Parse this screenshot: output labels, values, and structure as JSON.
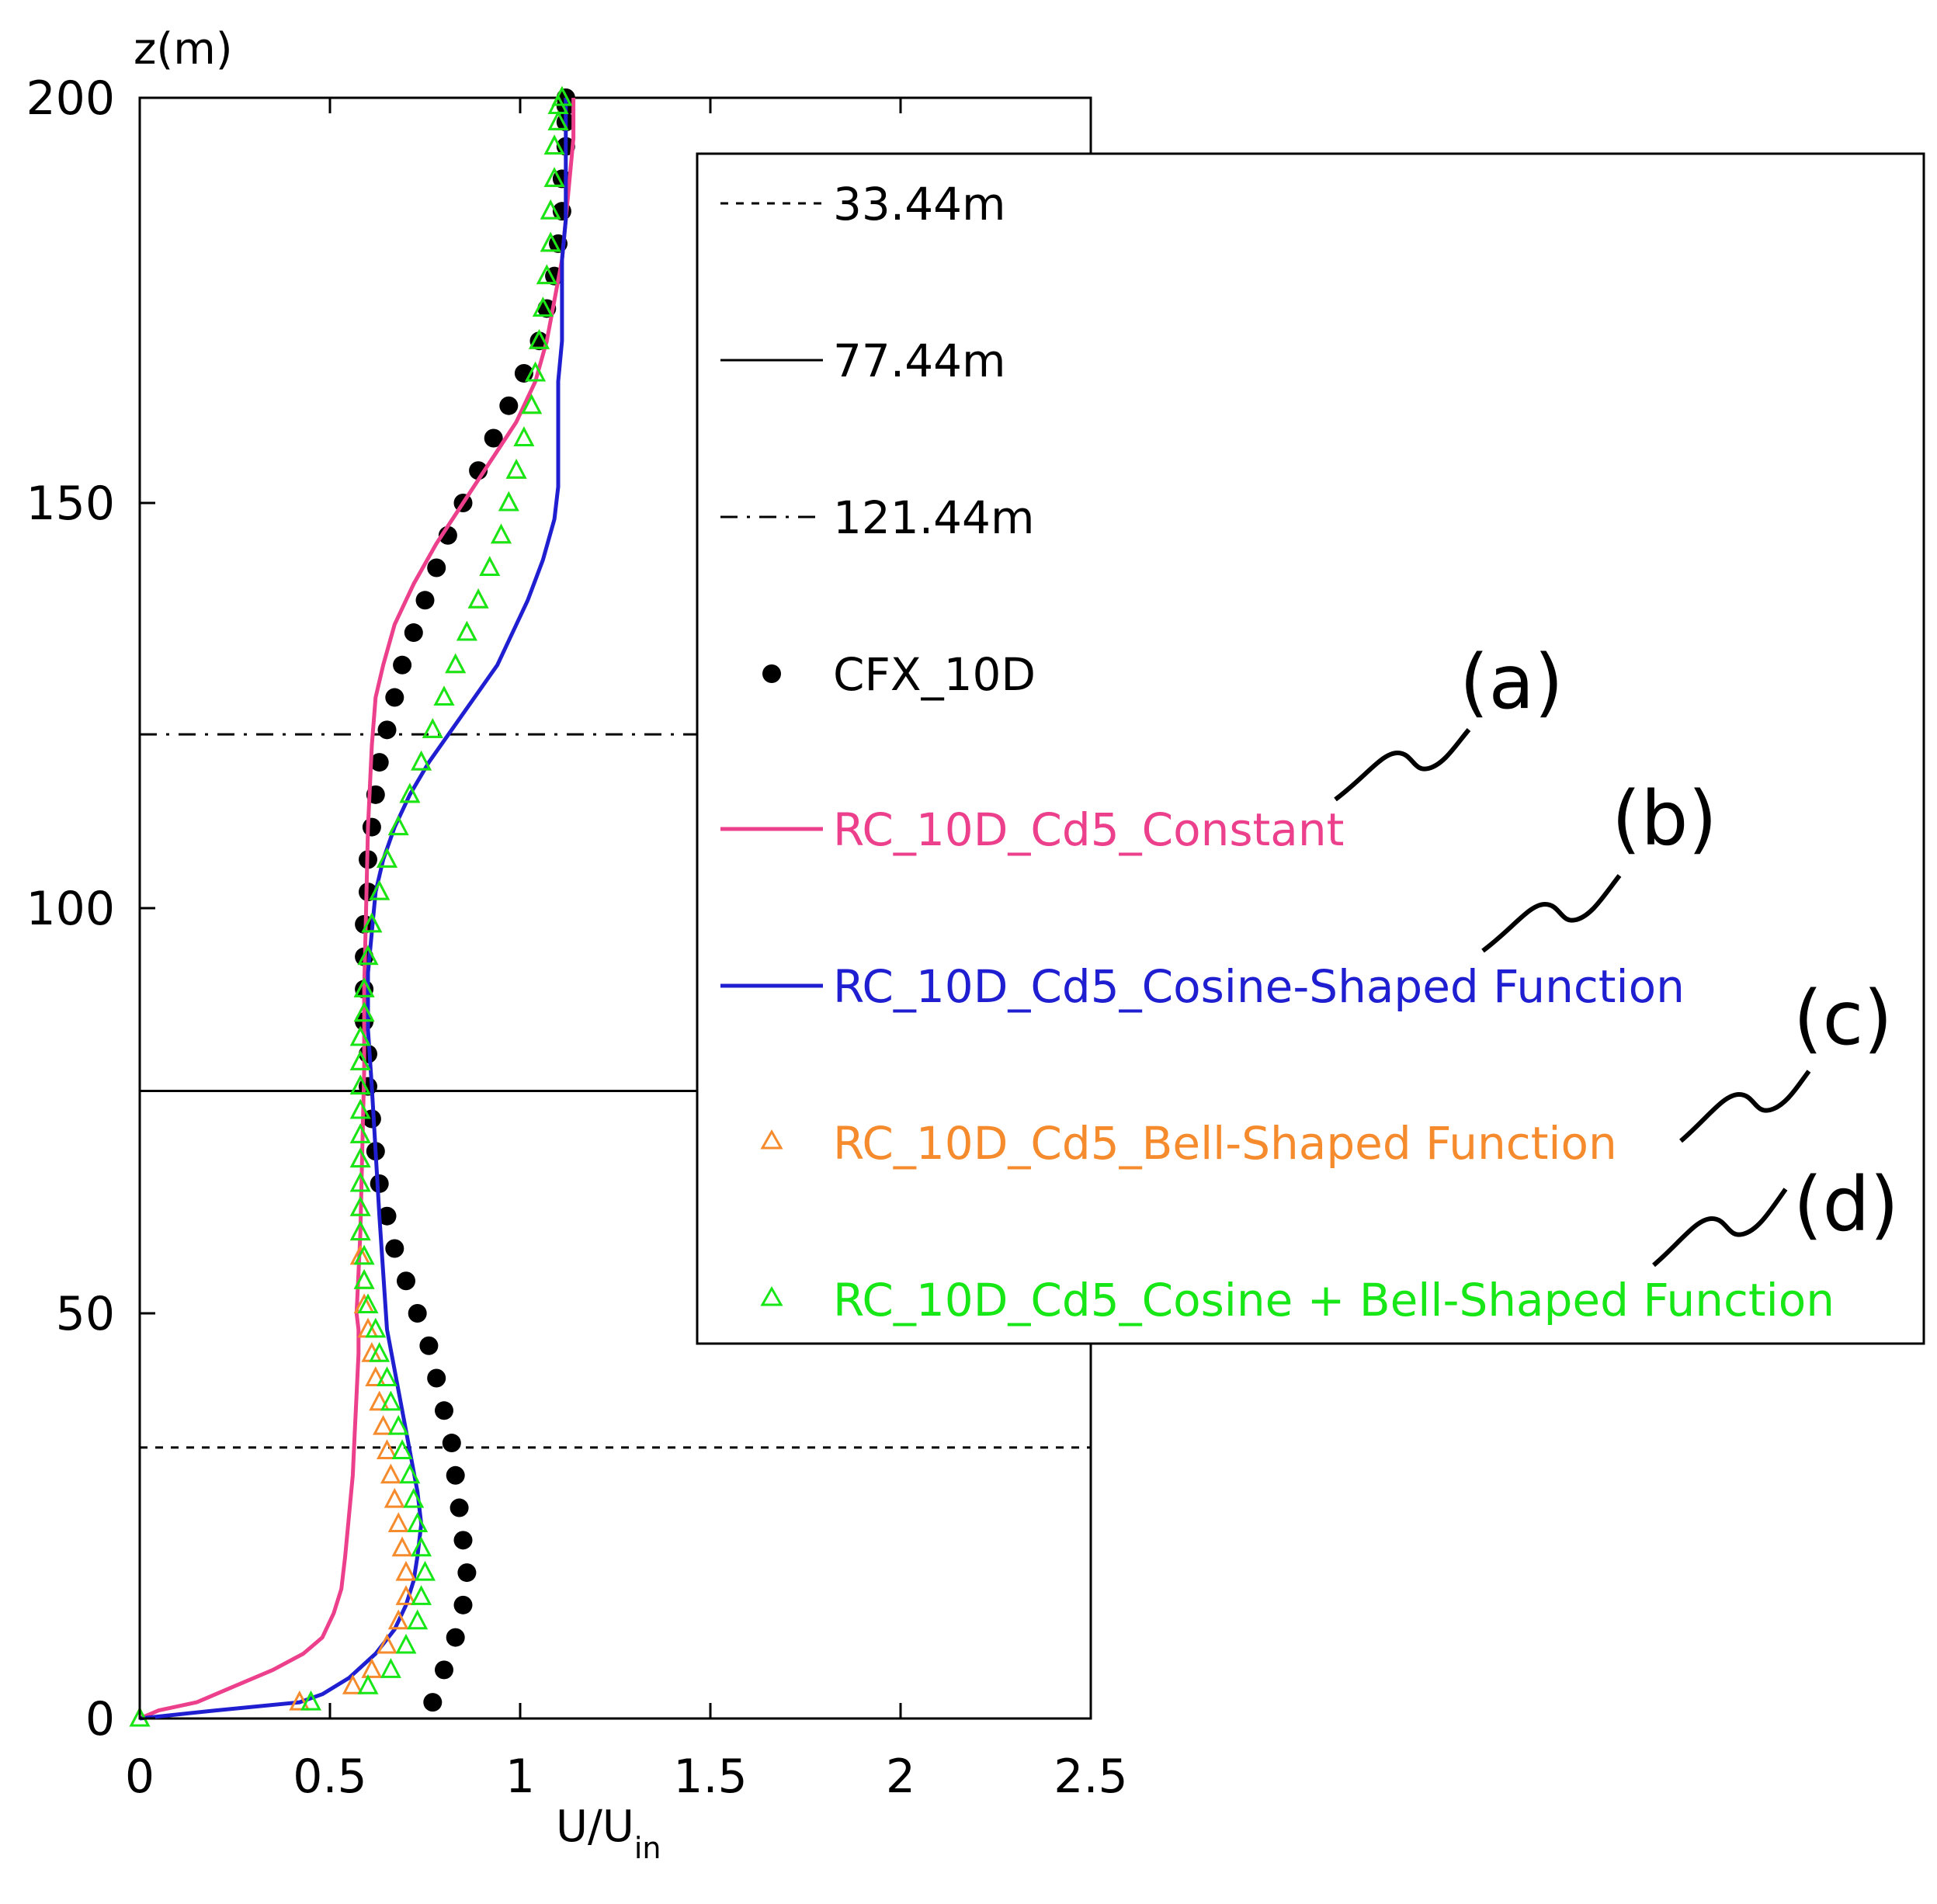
{
  "chart_data": {
    "type": "line",
    "title": "",
    "xlabel": "U/U",
    "xlabel_sub": "in",
    "ylabel": "z(m)",
    "xlim": [
      0,
      2.5
    ],
    "ylim": [
      0,
      200
    ],
    "xticks": [
      0,
      0.5,
      1,
      1.5,
      2,
      2.5
    ],
    "xtick_labels": [
      "0",
      "0.5",
      "1",
      "1.5",
      "2",
      "2.5"
    ],
    "yticks": [
      0,
      50,
      100,
      150,
      200
    ],
    "ytick_labels": [
      "0",
      "50",
      "100",
      "150",
      "200"
    ],
    "grid": false,
    "legend_position": "right",
    "hlines": [
      {
        "name": "33.44m",
        "y": 33.44,
        "style": "dashed"
      },
      {
        "name": "77.44m",
        "y": 77.44,
        "style": "solid"
      },
      {
        "name": "121.44m",
        "y": 121.44,
        "style": "dashdot"
      }
    ],
    "series": [
      {
        "name": "CFX_10D",
        "kind": "dots",
        "color": "#000000",
        "x": [
          0.77,
          0.8,
          0.83,
          0.85,
          0.86,
          0.85,
          0.84,
          0.83,
          0.82,
          0.8,
          0.78,
          0.76,
          0.73,
          0.7,
          0.67,
          0.65,
          0.63,
          0.62,
          0.61,
          0.6,
          0.6,
          0.59,
          0.59,
          0.59,
          0.59,
          0.6,
          0.6,
          0.61,
          0.62,
          0.63,
          0.65,
          0.67,
          0.69,
          0.72,
          0.75,
          0.78,
          0.81,
          0.85,
          0.89,
          0.93,
          0.97,
          1.01,
          1.05,
          1.07,
          1.09,
          1.1,
          1.11,
          1.11,
          1.12,
          1.12,
          1.12,
          1.12,
          1.12
        ],
        "y": [
          2,
          6,
          10,
          14,
          18,
          22,
          26,
          30,
          34,
          38,
          42,
          46,
          50,
          54,
          58,
          62,
          66,
          70,
          74,
          78,
          82,
          86,
          90,
          94,
          98,
          102,
          106,
          110,
          114,
          118,
          122,
          126,
          130,
          134,
          138,
          142,
          146,
          150,
          154,
          158,
          162,
          166,
          170,
          174,
          178,
          182,
          186,
          190,
          194,
          197,
          199,
          200,
          200
        ]
      },
      {
        "name": "RC_10D_Cd5_Constant",
        "kind": "line",
        "color": "#ec3f8c",
        "x": [
          0.0,
          0.05,
          0.15,
          0.25,
          0.35,
          0.43,
          0.48,
          0.51,
          0.53,
          0.54,
          0.55,
          0.56,
          0.565,
          0.57,
          0.575,
          0.575,
          0.57,
          0.575,
          0.58,
          0.585,
          0.59,
          0.59,
          0.595,
          0.6,
          0.61,
          0.62,
          0.64,
          0.67,
          0.72,
          0.78,
          0.85,
          0.92,
          0.99,
          1.04,
          1.07,
          1.09,
          1.11,
          1.12,
          1.13,
          1.14,
          1.14
        ],
        "x_end": [],
        "y": [
          0,
          1,
          2,
          4,
          6,
          8,
          10,
          13,
          16,
          20,
          25,
          30,
          35,
          40,
          45,
          48,
          50,
          55,
          60,
          70,
          80,
          90,
          100,
          110,
          120,
          126,
          130,
          135,
          140,
          145,
          150,
          155,
          160,
          165,
          170,
          175,
          180,
          185,
          190,
          195,
          200
        ]
      },
      {
        "name": "RC_10D_Cd5_Cosine-Shaped Function",
        "kind": "line",
        "color": "#1f1fd1",
        "x": [
          0.0,
          0.2,
          0.42,
          0.48,
          0.55,
          0.62,
          0.67,
          0.7,
          0.72,
          0.73,
          0.74,
          0.73,
          0.71,
          0.69,
          0.67,
          0.65,
          0.64,
          0.63,
          0.62,
          0.61,
          0.6,
          0.6,
          0.61,
          0.62,
          0.64,
          0.67,
          0.71,
          0.76,
          0.82,
          0.88,
          0.94,
          0.98,
          1.02,
          1.06,
          1.09,
          1.1,
          1.1,
          1.1,
          1.1,
          1.11,
          1.11,
          1.11,
          1.12,
          1.12,
          1.12
        ],
        "y": [
          0,
          1,
          2,
          3,
          5,
          8,
          11,
          14,
          17,
          20,
          24,
          28,
          33,
          38,
          43,
          48,
          55,
          62,
          70,
          78,
          85,
          92,
          97,
          102,
          106,
          110,
          114,
          118,
          122,
          126,
          130,
          134,
          138,
          143,
          148,
          152,
          156,
          160,
          165,
          170,
          175,
          180,
          185,
          190,
          200
        ]
      },
      {
        "name": "RC_10D_Cd5_Bell-Shaped Function",
        "kind": "tri",
        "color": "#f58b2c",
        "x": [
          0.0,
          0.42,
          0.56,
          0.61,
          0.65,
          0.68,
          0.7,
          0.7,
          0.69,
          0.68,
          0.67,
          0.66,
          0.65,
          0.64,
          0.63,
          0.62,
          0.61,
          0.6,
          0.59,
          0.59,
          0.58,
          0.58,
          0.58,
          0.58,
          0.58,
          0.58,
          0.58,
          0.58,
          0.58,
          0.58,
          0.59,
          0.59,
          0.6,
          0.61,
          0.63,
          0.65,
          0.68,
          0.71,
          0.74,
          0.77,
          0.8,
          0.83,
          0.86,
          0.89,
          0.92,
          0.95,
          0.97,
          0.99,
          1.01,
          1.03,
          1.04,
          1.05,
          1.06,
          1.07,
          1.08,
          1.08,
          1.09,
          1.09,
          1.1,
          1.1,
          1.11
        ],
        "y": [
          0,
          2,
          4,
          6,
          9,
          12,
          15,
          18,
          21,
          24,
          27,
          30,
          33,
          36,
          39,
          42,
          45,
          48,
          51,
          54,
          57,
          60,
          63,
          66,
          69,
          72,
          75,
          78,
          81,
          84,
          87,
          90,
          94,
          98,
          102,
          106,
          110,
          114,
          118,
          122,
          126,
          130,
          134,
          138,
          142,
          146,
          150,
          154,
          158,
          162,
          166,
          170,
          174,
          178,
          182,
          186,
          190,
          194,
          197,
          199,
          200
        ]
      },
      {
        "name": "RC_10D_Cd5_Cosine + Bell-Shaped Function",
        "kind": "tri",
        "color": "#17e617",
        "x": [
          0.0,
          0.45,
          0.6,
          0.66,
          0.7,
          0.73,
          0.74,
          0.75,
          0.74,
          0.73,
          0.72,
          0.71,
          0.69,
          0.68,
          0.66,
          0.65,
          0.63,
          0.62,
          0.6,
          0.59,
          0.59,
          0.58,
          0.58,
          0.58,
          0.58,
          0.58,
          0.58,
          0.58,
          0.58,
          0.58,
          0.59,
          0.59,
          0.6,
          0.61,
          0.63,
          0.65,
          0.68,
          0.71,
          0.74,
          0.77,
          0.8,
          0.83,
          0.86,
          0.89,
          0.92,
          0.95,
          0.97,
          0.99,
          1.01,
          1.03,
          1.04,
          1.05,
          1.06,
          1.07,
          1.08,
          1.08,
          1.09,
          1.09,
          1.1,
          1.1,
          1.11
        ],
        "y": [
          0,
          2,
          4,
          6,
          9,
          12,
          15,
          18,
          21,
          24,
          27,
          30,
          33,
          36,
          39,
          42,
          45,
          48,
          51,
          54,
          57,
          60,
          63,
          66,
          69,
          72,
          75,
          78,
          81,
          84,
          87,
          90,
          94,
          98,
          102,
          106,
          110,
          114,
          118,
          122,
          126,
          130,
          134,
          138,
          142,
          146,
          150,
          154,
          158,
          162,
          166,
          170,
          174,
          178,
          182,
          186,
          190,
          194,
          197,
          199,
          200
        ]
      }
    ],
    "annotations": [
      "(a)",
      "(b)",
      "(c)",
      "(d)"
    ]
  }
}
